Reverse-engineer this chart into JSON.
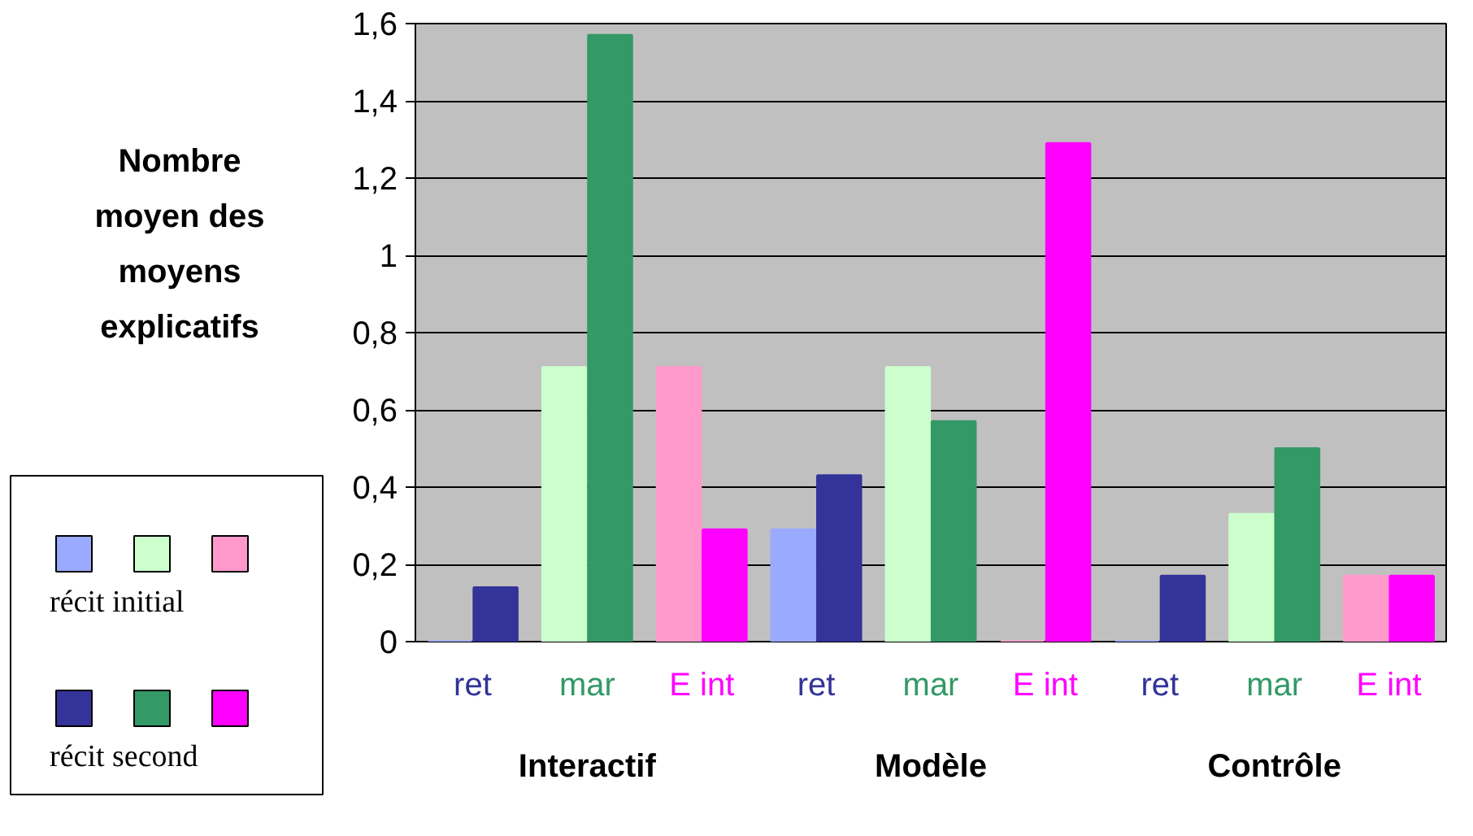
{
  "chart_data": {
    "type": "bar",
    "ylabel": "Nombre moyen des moyens explicatifs",
    "categories": [
      "ret",
      "mar",
      "E int",
      "ret",
      "mar",
      "E int",
      "ret",
      "mar",
      "E int"
    ],
    "series": [
      {
        "name": "récit initial",
        "colors": [
          "#99aaff",
          "#ccffcc",
          "#ff99cc",
          "#99aaff",
          "#ccffcc",
          "#ff99cc",
          "#99aaff",
          "#ccffcc",
          "#ff99cc"
        ],
        "values": [
          0,
          0.71,
          0.71,
          0.29,
          0.71,
          0,
          0,
          0.33,
          0.17
        ]
      },
      {
        "name": "récit second",
        "colors": [
          "#333399",
          "#339966",
          "#ff00ff",
          "#333399",
          "#339966",
          "#ff00ff",
          "#333399",
          "#339966",
          "#ff00ff"
        ],
        "values": [
          0.14,
          1.57,
          0.29,
          0.43,
          0.57,
          1.29,
          0.17,
          0.5,
          0.17
        ]
      }
    ],
    "annotations": [
      "Interactif",
      "Modèle",
      "Contrôle"
    ],
    "ylim": [
      0,
      1.6
    ],
    "yticks": [
      0,
      {
        "value": 0.2,
        "label": "0,2"
      },
      {
        "value": 0.4,
        "label": "0,4"
      },
      {
        "value": 0.6,
        "label": "0,6"
      },
      {
        "value": 0.8,
        "label": "0,8"
      },
      1,
      {
        "value": 1.2,
        "label": "1,2"
      },
      {
        "value": 1.4,
        "label": "1,4"
      },
      {
        "value": 1.6,
        "label": "1,6"
      }
    ],
    "grid": "y",
    "legend": "left"
  }
}
